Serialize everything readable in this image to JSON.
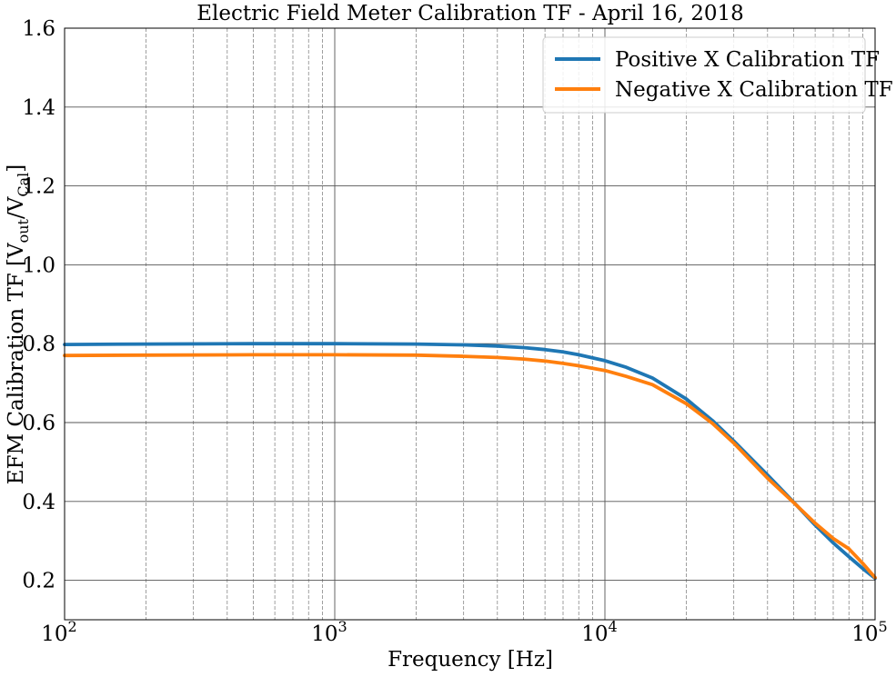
{
  "chart_data": {
    "type": "line",
    "title": "Electric Field Meter Calibration TF - April 16, 2018",
    "xlabel": "Frequency [Hz]",
    "ylabel": {
      "prefix": "EFM Calibration TF [V",
      "sub1": "out",
      "mid": "/V",
      "sub2": "Cal",
      "suffix": "]"
    },
    "xscale": "log",
    "xlim": [
      100,
      100000
    ],
    "ylim": [
      0.1,
      1.6
    ],
    "grid": true,
    "legend_position": "top-right",
    "x_ticks": [
      {
        "base": "10",
        "exp": "2",
        "value": 100
      },
      {
        "base": "10",
        "exp": "3",
        "value": 1000
      },
      {
        "base": "10",
        "exp": "4",
        "value": 10000
      },
      {
        "base": "10",
        "exp": "5",
        "value": 100000
      }
    ],
    "y_ticks": [
      {
        "label": "0.2",
        "value": 0.2
      },
      {
        "label": "0.4",
        "value": 0.4
      },
      {
        "label": "0.6",
        "value": 0.6
      },
      {
        "label": "0.8",
        "value": 0.8
      },
      {
        "label": "1.0",
        "value": 1.0
      },
      {
        "label": "1.2",
        "value": 1.2
      },
      {
        "label": "1.4",
        "value": 1.4
      },
      {
        "label": "1.6",
        "value": 1.6
      }
    ],
    "series": [
      {
        "name": "Positive X Calibration TF",
        "color": "#1f77b4",
        "x": [
          100,
          200,
          500,
          1000,
          2000,
          3000,
          4000,
          5000,
          6000,
          7000,
          8000,
          10000,
          12000,
          15000,
          20000,
          25000,
          30000,
          40000,
          50000,
          60000,
          70000,
          80000,
          90000,
          100000
        ],
        "y": [
          0.798,
          0.799,
          0.8,
          0.8,
          0.799,
          0.797,
          0.794,
          0.79,
          0.785,
          0.779,
          0.772,
          0.757,
          0.74,
          0.713,
          0.66,
          0.605,
          0.553,
          0.467,
          0.398,
          0.34,
          0.295,
          0.26,
          0.23,
          0.205
        ]
      },
      {
        "name": "Negative X Calibration TF",
        "color": "#ff7f0e",
        "x": [
          100,
          200,
          500,
          1000,
          2000,
          3000,
          4000,
          5000,
          6000,
          7000,
          8000,
          10000,
          12000,
          15000,
          20000,
          25000,
          30000,
          40000,
          50000,
          60000,
          70000,
          80000,
          90000,
          100000
        ],
        "y": [
          0.77,
          0.771,
          0.772,
          0.772,
          0.771,
          0.768,
          0.765,
          0.761,
          0.756,
          0.75,
          0.744,
          0.732,
          0.717,
          0.696,
          0.648,
          0.598,
          0.548,
          0.459,
          0.397,
          0.345,
          0.306,
          0.28,
          0.243,
          0.207
        ]
      }
    ]
  }
}
